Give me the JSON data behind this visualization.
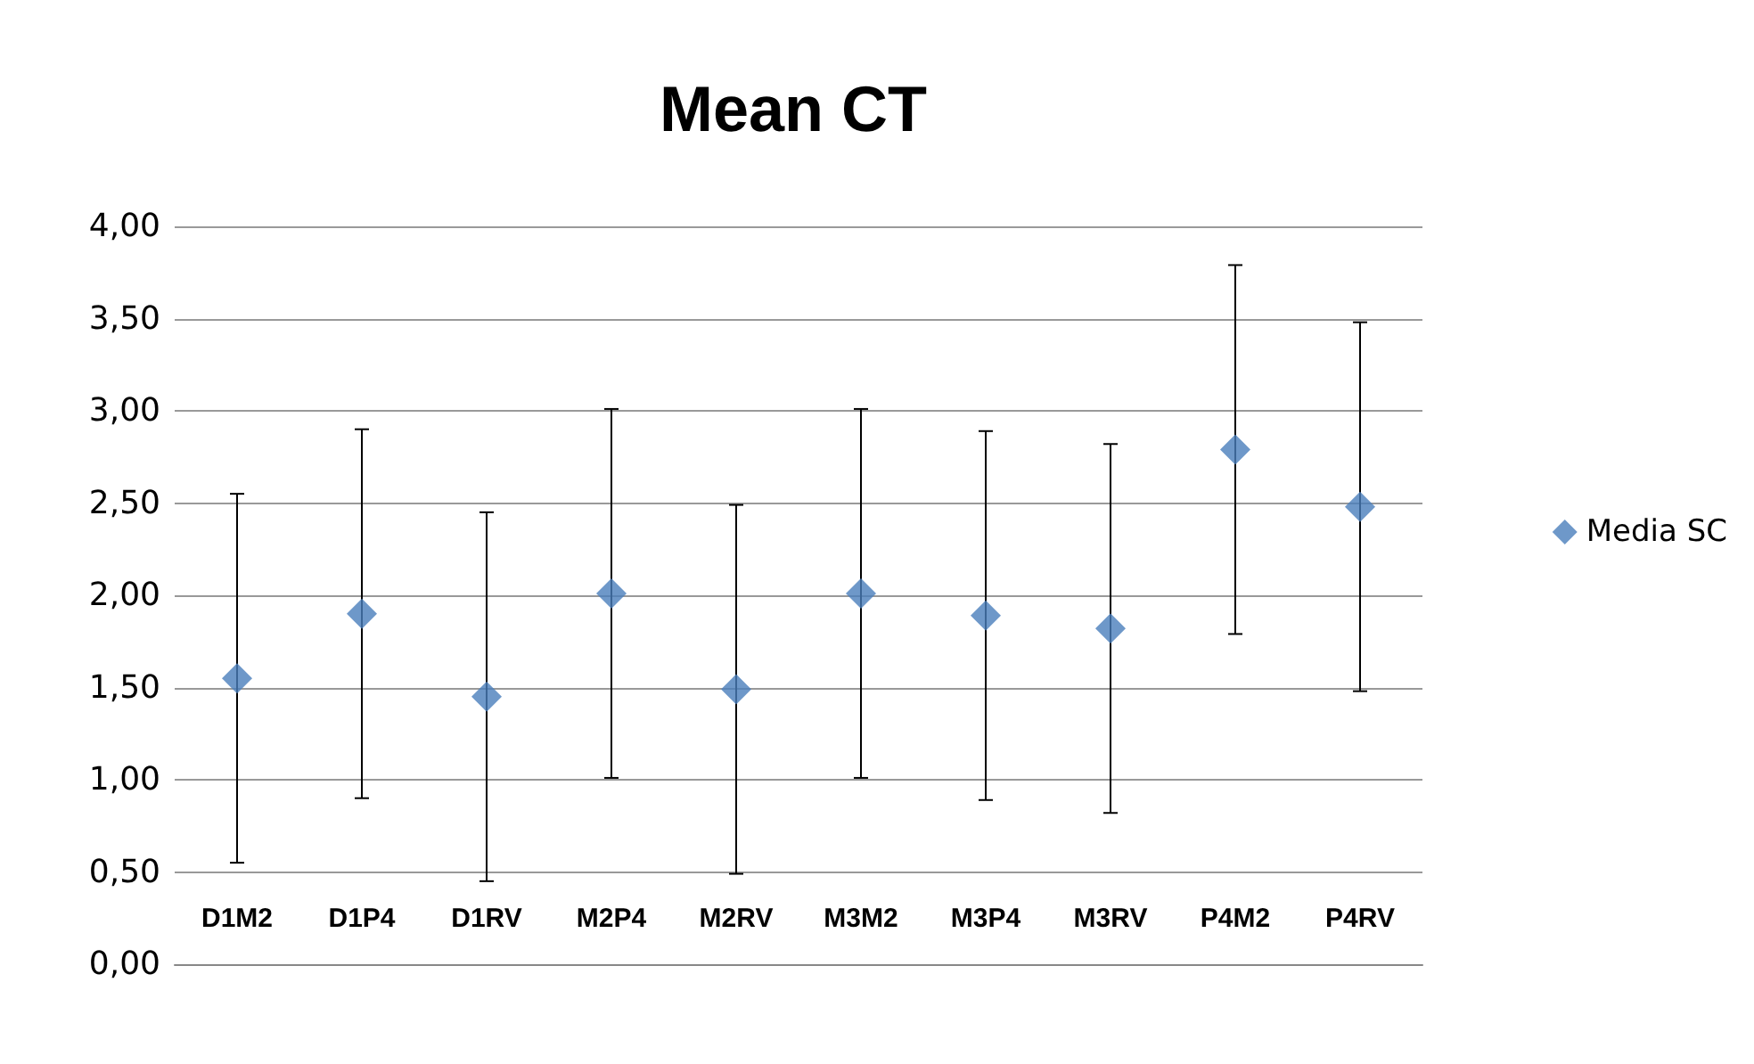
{
  "chart_data": {
    "type": "scatter",
    "title": "Mean CT",
    "categories": [
      "D1M2",
      "D1P4",
      "D1RV",
      "M2P4",
      "M2RV",
      "M3M2",
      "M3P4",
      "M3RV",
      "P4M2",
      "P4RV"
    ],
    "series": [
      {
        "name": "Media SC",
        "color": "#4a7ebb",
        "values": [
          1.55,
          1.9,
          1.45,
          2.01,
          1.49,
          2.01,
          1.89,
          1.82,
          2.79,
          2.48
        ],
        "errors": [
          1,
          1,
          1,
          1,
          1,
          1,
          1,
          1,
          1,
          1
        ]
      }
    ],
    "ylim": [
      0,
      4
    ],
    "yticks": [
      {
        "value": 0,
        "label": "0,00"
      },
      {
        "value": 0.5,
        "label": "0,50"
      },
      {
        "value": 1,
        "label": "1,00"
      },
      {
        "value": 1.5,
        "label": "1,50"
      },
      {
        "value": 2,
        "label": "2,00"
      },
      {
        "value": 2.5,
        "label": "2,50"
      },
      {
        "value": 3,
        "label": "3,00"
      },
      {
        "value": 3.5,
        "label": "3,50"
      },
      {
        "value": 4,
        "label": "4,00"
      }
    ],
    "grid": "y",
    "legend": "right",
    "marker": "diamond"
  }
}
